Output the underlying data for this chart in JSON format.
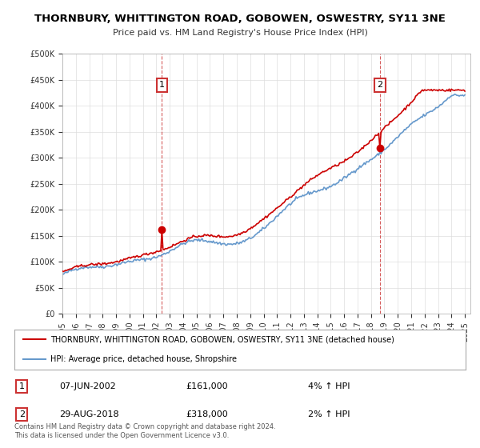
{
  "title_line1": "THORNBURY, WHITTINGTON ROAD, GOBOWEN, OSWESTRY, SY11 3NE",
  "title_line2": "Price paid vs. HM Land Registry's House Price Index (HPI)",
  "legend_line1": "THORNBURY, WHITTINGTON ROAD, GOBOWEN, OSWESTRY, SY11 3NE (detached house)",
  "legend_line2": "HPI: Average price, detached house, Shropshire",
  "annotation1_label": "1",
  "annotation1_date": "07-JUN-2002",
  "annotation1_price": 161000,
  "annotation1_hpi": "4% ↑ HPI",
  "annotation2_label": "2",
  "annotation2_date": "29-AUG-2018",
  "annotation2_price": 318000,
  "annotation2_hpi": "2% ↑ HPI",
  "footer": "Contains HM Land Registry data © Crown copyright and database right 2024.\nThis data is licensed under the Open Government Licence v3.0.",
  "line_color_red": "#cc0000",
  "line_color_blue": "#6699cc",
  "bg_color": "#ffffff",
  "grid_color": "#dddddd",
  "annotation_box_color": "#cc3333",
  "ylim_min": 0,
  "ylim_max": 500000,
  "yticks": [
    0,
    50000,
    100000,
    150000,
    200000,
    250000,
    300000,
    350000,
    400000,
    450000,
    500000
  ]
}
